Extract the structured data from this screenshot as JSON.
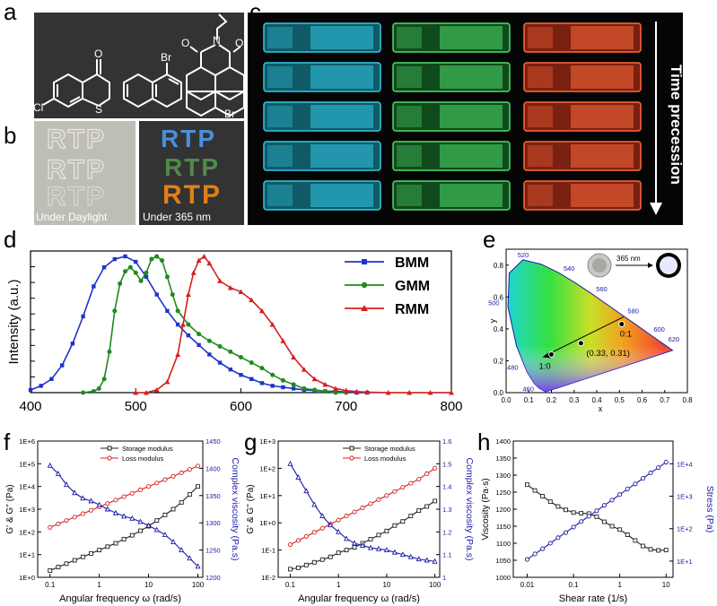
{
  "panels": {
    "a": {
      "label": "a",
      "atoms": [
        "Cl",
        "S",
        "O",
        "Br",
        "O",
        "O",
        "N",
        "Br"
      ]
    },
    "b": {
      "label": "b",
      "text": "RTP",
      "caption_left": "Under Daylight",
      "caption_right": "Under 365 nm"
    },
    "c": {
      "label": "c",
      "arrow_text": "Time precession"
    },
    "d": {
      "label": "d"
    },
    "e": {
      "label": "e"
    },
    "f": {
      "label": "f"
    },
    "g": {
      "label": "g"
    },
    "h": {
      "label": "h"
    }
  },
  "colors": {
    "blue": "#1f35c8",
    "green": "#1e8a1e",
    "red": "#d42020",
    "black": "#222222",
    "navy": "#1a1aa8"
  },
  "chart_data": [
    {
      "id": "d",
      "type": "line",
      "title": "",
      "xlabel": "",
      "ylabel": "Intensity (a.u.)",
      "xlim": [
        400,
        800
      ],
      "xticks": [
        "400",
        "500",
        "600",
        "700",
        "800"
      ],
      "series": [
        {
          "name": "BMM",
          "color": "#1f35c8",
          "x": [
            400,
            410,
            420,
            430,
            440,
            450,
            460,
            470,
            480,
            490,
            500,
            510,
            520,
            530,
            540,
            550,
            560,
            570,
            580,
            590,
            600,
            610,
            620,
            630,
            640,
            650,
            660,
            670,
            680,
            690,
            700,
            710,
            720
          ],
          "y": [
            0.02,
            0.05,
            0.1,
            0.2,
            0.36,
            0.56,
            0.78,
            0.92,
            0.98,
            1.0,
            0.96,
            0.85,
            0.72,
            0.6,
            0.5,
            0.42,
            0.35,
            0.28,
            0.22,
            0.17,
            0.13,
            0.1,
            0.07,
            0.05,
            0.04,
            0.03,
            0.02,
            0.015,
            0.01,
            0.01,
            0.005,
            0.0,
            0.0
          ]
        },
        {
          "name": "GMM",
          "color": "#1e8a1e",
          "x": [
            450,
            460,
            465,
            470,
            475,
            480,
            485,
            490,
            495,
            500,
            505,
            510,
            515,
            520,
            525,
            530,
            535,
            540,
            550,
            560,
            570,
            580,
            590,
            600,
            610,
            620,
            630,
            640,
            650,
            660,
            670,
            680,
            690,
            700
          ],
          "y": [
            0.0,
            0.01,
            0.03,
            0.1,
            0.3,
            0.6,
            0.8,
            0.89,
            0.92,
            0.88,
            0.82,
            0.88,
            0.98,
            1.0,
            0.97,
            0.85,
            0.72,
            0.6,
            0.5,
            0.43,
            0.38,
            0.34,
            0.3,
            0.26,
            0.22,
            0.18,
            0.13,
            0.09,
            0.06,
            0.03,
            0.02,
            0.01,
            0.0,
            0.0
          ]
        },
        {
          "name": "RMM",
          "color": "#d42020",
          "x": [
            500,
            510,
            520,
            530,
            540,
            545,
            550,
            555,
            560,
            565,
            570,
            580,
            590,
            600,
            610,
            620,
            630,
            640,
            650,
            660,
            670,
            680,
            690,
            700,
            710,
            720,
            740,
            760,
            780,
            800
          ],
          "y": [
            0.0,
            0.0,
            0.02,
            0.08,
            0.28,
            0.5,
            0.72,
            0.88,
            0.97,
            1.0,
            0.95,
            0.82,
            0.77,
            0.74,
            0.68,
            0.6,
            0.5,
            0.38,
            0.26,
            0.17,
            0.1,
            0.06,
            0.03,
            0.015,
            0.008,
            0.004,
            0.0,
            0.0,
            0.0,
            0.0
          ]
        }
      ]
    },
    {
      "id": "e",
      "type": "scatter",
      "xlabel": "x",
      "ylabel": "y",
      "xlim": [
        0,
        0.8
      ],
      "ylim": [
        0,
        0.9
      ],
      "xticks": [
        "0.0",
        "0.1",
        "0.2",
        "0.3",
        "0.4",
        "0.5",
        "0.6",
        "0.7",
        "0.8"
      ],
      "yticks": [
        "0.0",
        "0.2",
        "0.4",
        "0.6",
        "0.8"
      ],
      "wavelengths": [
        {
          "label": "520",
          "x": 0.0743,
          "y": 0.8338
        },
        {
          "label": "540",
          "x": 0.2296,
          "y": 0.7543
        },
        {
          "label": "560",
          "x": 0.3731,
          "y": 0.6245
        },
        {
          "label": "580",
          "x": 0.5125,
          "y": 0.4866
        },
        {
          "label": "600",
          "x": 0.627,
          "y": 0.3725
        },
        {
          "label": "620",
          "x": 0.6915,
          "y": 0.3083
        },
        {
          "label": "500",
          "x": 0.0082,
          "y": 0.5384
        },
        {
          "label": "480",
          "x": 0.0913,
          "y": 0.1327
        },
        {
          "label": "460",
          "x": 0.144,
          "y": 0.0297
        }
      ],
      "points": [
        {
          "label": "1:0",
          "x": 0.2,
          "y": 0.24
        },
        {
          "label": "(0.33, 0.31)",
          "x": 0.33,
          "y": 0.31
        },
        {
          "label": "0:1",
          "x": 0.51,
          "y": 0.43
        }
      ],
      "inset_label": "365 nm"
    },
    {
      "id": "f",
      "type": "line",
      "xlabel": "Angular frequency ω (rad/s)",
      "ylabel": "G' & G'' (Pa)",
      "y2label": "Complex viscosity (Pa.s)",
      "xticks": [
        "0.1",
        "1",
        "10",
        "100"
      ],
      "yticks": [
        "1E+0",
        "1E+1",
        "1E+2",
        "1E+3",
        "1E+4",
        "1E+5",
        "1E+6"
      ],
      "y2ticks": [
        "1200",
        "1250",
        "1300",
        "1350",
        "1400",
        "1450"
      ],
      "ylim_log": [
        0,
        6
      ],
      "y2lim": [
        1200,
        1450
      ],
      "x": [
        0.1,
        0.1468,
        0.2154,
        0.3162,
        0.4642,
        0.6813,
        1.0,
        1.468,
        2.154,
        3.162,
        4.642,
        6.813,
        10,
        14.68,
        21.54,
        31.62,
        46.42,
        68.13,
        100
      ],
      "series": [
        {
          "name": "Storage modulus",
          "axis": "left",
          "color": "#222222",
          "log10": [
            0.3,
            0.45,
            0.6,
            0.75,
            0.9,
            1.05,
            1.2,
            1.35,
            1.5,
            1.68,
            1.85,
            2.05,
            2.25,
            2.5,
            2.75,
            3.0,
            3.3,
            3.65,
            4.0
          ]
        },
        {
          "name": "Loss modulus",
          "axis": "left",
          "color": "#d42020",
          "log10": [
            2.2,
            2.35,
            2.5,
            2.65,
            2.8,
            2.95,
            3.1,
            3.25,
            3.4,
            3.55,
            3.7,
            3.85,
            4.0,
            4.15,
            4.3,
            4.45,
            4.6,
            4.75,
            4.9
          ]
        },
        {
          "name": "Complex viscosity",
          "axis": "right",
          "color": "#1a1aa8",
          "values": [
            1405,
            1390,
            1370,
            1355,
            1345,
            1340,
            1333,
            1325,
            1318,
            1312,
            1308,
            1302,
            1295,
            1287,
            1278,
            1265,
            1250,
            1235,
            1220
          ]
        }
      ]
    },
    {
      "id": "g",
      "type": "line",
      "xlabel": "Angular frequency ω (rad/s)",
      "ylabel": "G' & G'' (Pa)",
      "y2label": "Complex viscosity (Pa.s)",
      "xticks": [
        "0.1",
        "1",
        "10",
        "100"
      ],
      "yticks": [
        "1E-2",
        "1E-1",
        "1E+0",
        "1E+1",
        "1E+2",
        "1E+3"
      ],
      "y2ticks": [
        "1",
        "1.1",
        "1.2",
        "1.3",
        "1.4",
        "1.5",
        "1.6"
      ],
      "ylim_log": [
        -2,
        3
      ],
      "y2lim": [
        1.0,
        1.6
      ],
      "x": [
        0.1,
        0.1468,
        0.2154,
        0.3162,
        0.4642,
        0.6813,
        1.0,
        1.468,
        2.154,
        3.162,
        4.642,
        6.813,
        10,
        14.68,
        21.54,
        31.62,
        46.42,
        68.13,
        100
      ],
      "series": [
        {
          "name": "Storage modulus",
          "axis": "left",
          "color": "#222222",
          "log10": [
            -1.7,
            -1.65,
            -1.55,
            -1.45,
            -1.35,
            -1.25,
            -1.1,
            -1.0,
            -0.9,
            -0.75,
            -0.6,
            -0.45,
            -0.3,
            -0.1,
            0.05,
            0.25,
            0.45,
            0.6,
            0.8
          ]
        },
        {
          "name": "Loss modulus",
          "axis": "left",
          "color": "#d42020",
          "log10": [
            -0.8,
            -0.65,
            -0.5,
            -0.35,
            -0.2,
            -0.05,
            0.1,
            0.25,
            0.4,
            0.55,
            0.7,
            0.85,
            1.0,
            1.15,
            1.3,
            1.45,
            1.6,
            1.8,
            2.0
          ]
        },
        {
          "name": "Complex viscosity",
          "axis": "right",
          "color": "#1a1aa8",
          "values": [
            1.5,
            1.44,
            1.38,
            1.32,
            1.27,
            1.23,
            1.2,
            1.17,
            1.15,
            1.14,
            1.13,
            1.125,
            1.12,
            1.11,
            1.1,
            1.09,
            1.08,
            1.075,
            1.07
          ]
        }
      ]
    },
    {
      "id": "h",
      "type": "line",
      "xlabel": "Shear rate (1/s)",
      "ylabel": "Viscosity (Pa·s)",
      "y2label": "Stress (Pa)",
      "xticks": [
        "0.01",
        "0.1",
        "1",
        "10"
      ],
      "yticks": [
        "1000",
        "1050",
        "1100",
        "1150",
        "1200",
        "1250",
        "1300",
        "1350",
        "1400"
      ],
      "y2ticks": [
        "1E+1",
        "1E+2",
        "1E+3",
        "1E+4"
      ],
      "ylim": [
        1000,
        1400
      ],
      "y2lim_log": [
        0.5,
        4.7
      ],
      "x": [
        0.01,
        0.01468,
        0.02154,
        0.03162,
        0.04642,
        0.06813,
        0.1,
        0.1468,
        0.2154,
        0.3162,
        0.4642,
        0.6813,
        1.0,
        1.468,
        2.154,
        3.162,
        4.642,
        6.813,
        10
      ],
      "series": [
        {
          "name": "Viscosity",
          "axis": "left",
          "color": "#222222",
          "values": [
            1272,
            1255,
            1238,
            1222,
            1208,
            1198,
            1190,
            1188,
            1187,
            1178,
            1163,
            1150,
            1140,
            1125,
            1108,
            1092,
            1082,
            1079,
            1080
          ]
        },
        {
          "name": "Stress",
          "axis": "right",
          "color": "#1a1aa8",
          "log10": [
            1.05,
            1.22,
            1.38,
            1.55,
            1.72,
            1.88,
            2.05,
            2.22,
            2.38,
            2.55,
            2.72,
            2.88,
            3.05,
            3.22,
            3.38,
            3.55,
            3.72,
            3.88,
            4.05
          ]
        }
      ]
    }
  ]
}
